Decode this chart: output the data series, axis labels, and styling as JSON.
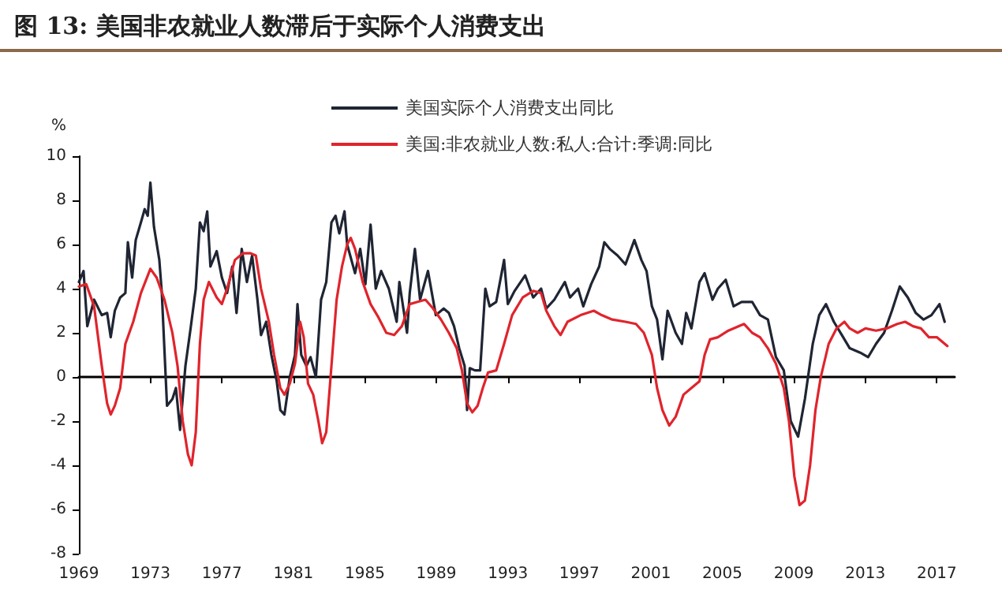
{
  "chart_data": {
    "type": "line",
    "title": "图 13: 美国非农就业人数滞后于实际个人消费支出",
    "ylabel": "%",
    "xlim": [
      1969,
      2018
    ],
    "xticks": [
      1969,
      1973,
      1977,
      1981,
      1985,
      1989,
      1993,
      1997,
      2001,
      2005,
      2009,
      2013,
      2017
    ],
    "ylim": [
      -8,
      10
    ],
    "yticks": [
      -8,
      -6,
      -4,
      -2,
      0,
      2,
      4,
      6,
      8,
      10
    ],
    "legend": "top",
    "marker": "none",
    "line_style": "solid",
    "series": [
      {
        "name": "美国实际个人消费支出同比",
        "color": "#1f2533",
        "x": [
          1969.0,
          1969.26,
          1969.47,
          1969.85,
          1970.28,
          1970.58,
          1970.78,
          1971.01,
          1971.31,
          1971.6,
          1971.74,
          1971.98,
          1972.18,
          1972.47,
          1972.68,
          1972.85,
          1973.0,
          1973.2,
          1973.5,
          1973.64,
          1973.93,
          1974.23,
          1974.43,
          1974.66,
          1974.96,
          1975.25,
          1975.54,
          1975.77,
          1975.98,
          1976.18,
          1976.36,
          1976.71,
          1977.0,
          1977.29,
          1977.58,
          1977.82,
          1978.11,
          1978.4,
          1978.69,
          1978.99,
          1979.19,
          1979.48,
          1979.77,
          1980.07,
          1980.27,
          1980.5,
          1980.8,
          1981.09,
          1981.23,
          1981.44,
          1981.73,
          1981.96,
          1982.26,
          1982.55,
          1982.84,
          1983.13,
          1983.36,
          1983.57,
          1983.86,
          1984.01,
          1984.45,
          1984.74,
          1985.03,
          1985.32,
          1985.61,
          1985.91,
          1986.34,
          1986.78,
          1986.93,
          1987.36,
          1987.51,
          1987.8,
          1988.09,
          1988.53,
          1988.97,
          1989.41,
          1989.7,
          1989.99,
          1990.28,
          1990.58,
          1990.72,
          1990.87,
          1991.16,
          1991.45,
          1991.74,
          1991.98,
          1992.35,
          1992.79,
          1993.0,
          1993.38,
          1993.97,
          1994.42,
          1994.86,
          1995.15,
          1995.6,
          1996.19,
          1996.48,
          1996.93,
          1997.22,
          1997.66,
          1998.11,
          1998.4,
          1998.7,
          1999.14,
          1999.58,
          2000.08,
          2000.47,
          2000.76,
          2001.06,
          2001.35,
          2001.65,
          2001.94,
          2002.39,
          2002.74,
          2002.98,
          2003.27,
          2003.72,
          2004.01,
          2004.45,
          2004.75,
          2005.19,
          2005.63,
          2006.08,
          2006.67,
          2007.11,
          2007.55,
          2008.0,
          2008.44,
          2008.83,
          2009.24,
          2009.62,
          2010.06,
          2010.42,
          2010.8,
          2011.24,
          2011.69,
          2012.13,
          2012.72,
          2013.16,
          2013.6,
          2014.05,
          2014.49,
          2014.93,
          2015.38,
          2015.82,
          2016.26,
          2016.7,
          2017.15,
          2017.44
        ],
        "values": [
          4.3,
          4.8,
          2.3,
          3.5,
          2.8,
          2.9,
          1.8,
          3.0,
          3.6,
          3.8,
          6.1,
          4.5,
          6.2,
          7.0,
          7.6,
          7.3,
          8.8,
          6.8,
          5.3,
          3.8,
          -1.3,
          -1.0,
          -0.5,
          -2.4,
          0.5,
          2.2,
          4.0,
          7.0,
          6.6,
          7.5,
          5.0,
          5.7,
          4.5,
          3.8,
          5.0,
          2.9,
          5.8,
          4.3,
          5.5,
          3.5,
          1.9,
          2.5,
          1.0,
          -0.2,
          -1.5,
          -1.7,
          0.0,
          1.0,
          3.3,
          1.0,
          0.5,
          0.9,
          0.0,
          3.5,
          4.3,
          7.0,
          7.3,
          6.5,
          7.5,
          6.0,
          4.7,
          5.8,
          4.2,
          6.9,
          4.0,
          4.8,
          4.0,
          2.5,
          4.3,
          2.0,
          3.8,
          5.8,
          3.5,
          4.8,
          2.8,
          3.1,
          2.9,
          2.3,
          1.3,
          0.5,
          -1.5,
          0.4,
          0.3,
          0.3,
          4.0,
          3.2,
          3.4,
          5.3,
          3.3,
          3.9,
          4.6,
          3.6,
          4.0,
          3.1,
          3.5,
          4.3,
          3.6,
          4.0,
          3.2,
          4.2,
          5.0,
          6.1,
          5.8,
          5.5,
          5.1,
          6.2,
          5.3,
          4.8,
          3.2,
          2.6,
          0.8,
          3.0,
          2.0,
          1.5,
          2.9,
          2.2,
          4.3,
          4.7,
          3.5,
          4.0,
          4.4,
          3.2,
          3.4,
          3.4,
          2.8,
          2.6,
          0.9,
          0.3,
          -2.0,
          -2.7,
          -1.0,
          1.5,
          2.8,
          3.3,
          2.5,
          1.9,
          1.3,
          1.1,
          0.9,
          1.5,
          2.0,
          3.0,
          4.1,
          3.6,
          2.9,
          2.6,
          2.8,
          3.3,
          2.5
        ]
      },
      {
        "name": "美国:非农就业人数:私人:合计:季调:同比",
        "color": "#e0242c",
        "x": [
          1969.0,
          1969.41,
          1969.85,
          1970.28,
          1970.58,
          1970.78,
          1971.01,
          1971.31,
          1971.6,
          1972.04,
          1972.47,
          1973.0,
          1973.35,
          1973.79,
          1974.23,
          1974.52,
          1974.81,
          1975.1,
          1975.31,
          1975.54,
          1975.77,
          1975.98,
          1976.27,
          1976.71,
          1977.0,
          1977.29,
          1977.73,
          1978.17,
          1978.61,
          1978.9,
          1979.19,
          1979.63,
          1979.92,
          1980.27,
          1980.5,
          1980.8,
          1981.09,
          1981.38,
          1981.58,
          1981.82,
          1982.11,
          1982.4,
          1982.61,
          1982.84,
          1983.13,
          1983.42,
          1983.72,
          1984.01,
          1984.21,
          1984.45,
          1984.88,
          1985.32,
          1985.76,
          1986.2,
          1986.64,
          1987.07,
          1987.51,
          1987.95,
          1988.39,
          1988.82,
          1989.26,
          1989.7,
          1990.14,
          1990.43,
          1990.72,
          1991.01,
          1991.31,
          1991.6,
          1991.89,
          1992.35,
          1992.79,
          1993.24,
          1993.83,
          1994.42,
          1994.86,
          1995.15,
          1995.6,
          1995.95,
          1996.34,
          1997.07,
          1997.81,
          1998.25,
          1998.84,
          1999.58,
          2000.17,
          2000.61,
          2001.06,
          2001.35,
          2001.65,
          2002.03,
          2002.39,
          2002.83,
          2003.27,
          2003.72,
          2004.01,
          2004.31,
          2004.75,
          2005.34,
          2005.93,
          2006.22,
          2006.67,
          2007.11,
          2007.55,
          2008.0,
          2008.44,
          2008.73,
          2009.03,
          2009.32,
          2009.62,
          2009.91,
          2010.21,
          2010.51,
          2010.95,
          2011.39,
          2011.83,
          2012.13,
          2012.57,
          2013.01,
          2013.6,
          2014.2,
          2014.79,
          2015.23,
          2015.67,
          2016.11,
          2016.56,
          2017.0,
          2017.59
        ],
        "values": [
          4.1,
          4.2,
          3.2,
          0.5,
          -1.2,
          -1.7,
          -1.3,
          -0.5,
          1.5,
          2.5,
          3.8,
          4.9,
          4.5,
          3.5,
          2.0,
          0.5,
          -2.0,
          -3.5,
          -4.0,
          -2.5,
          1.5,
          3.5,
          4.3,
          3.6,
          3.3,
          4.0,
          5.3,
          5.6,
          5.6,
          5.5,
          4.0,
          2.5,
          1.0,
          -0.5,
          -0.8,
          -0.3,
          0.6,
          2.5,
          1.8,
          -0.3,
          -0.8,
          -2.0,
          -3.0,
          -2.5,
          0.5,
          3.5,
          5.0,
          6.0,
          6.3,
          5.8,
          4.3,
          3.3,
          2.7,
          2.0,
          1.9,
          2.3,
          3.3,
          3.4,
          3.5,
          3.1,
          2.6,
          2.0,
          1.3,
          0.3,
          -1.2,
          -1.6,
          -1.3,
          -0.5,
          0.2,
          0.3,
          1.5,
          2.8,
          3.6,
          3.9,
          3.8,
          3.0,
          2.3,
          1.9,
          2.5,
          2.8,
          3.0,
          2.8,
          2.6,
          2.5,
          2.4,
          2.0,
          1.0,
          -0.5,
          -1.5,
          -2.2,
          -1.8,
          -0.8,
          -0.5,
          -0.2,
          1.0,
          1.7,
          1.8,
          2.1,
          2.3,
          2.4,
          2.0,
          1.8,
          1.3,
          0.6,
          -0.5,
          -2.0,
          -4.5,
          -5.8,
          -5.6,
          -4.0,
          -1.5,
          0.0,
          1.5,
          2.2,
          2.5,
          2.2,
          2.0,
          2.2,
          2.1,
          2.2,
          2.4,
          2.5,
          2.3,
          2.2,
          1.8,
          1.8,
          1.4
        ]
      }
    ]
  }
}
